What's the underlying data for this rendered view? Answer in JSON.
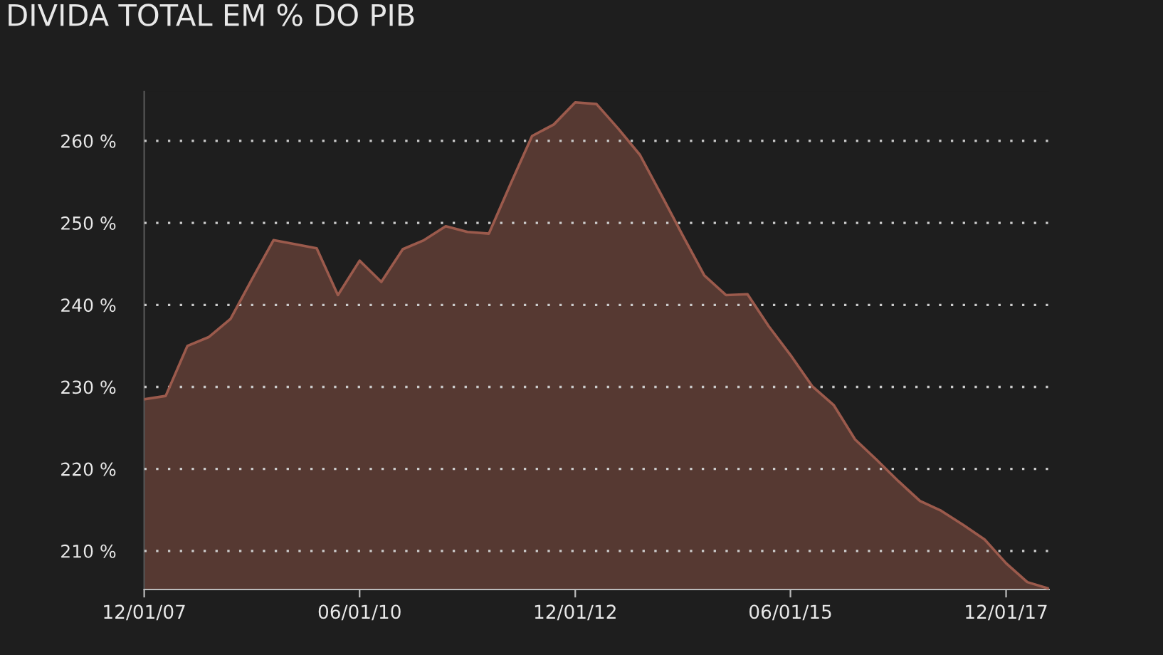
{
  "chart_data": {
    "type": "area",
    "title": "DIVIDA TOTAL EM % DO PIB",
    "x": [
      "2007-12-01",
      "2008-03-01",
      "2008-06-01",
      "2008-09-01",
      "2008-12-01",
      "2009-03-01",
      "2009-06-01",
      "2009-09-01",
      "2009-12-01",
      "2010-03-01",
      "2010-06-01",
      "2010-09-01",
      "2010-12-01",
      "2011-03-01",
      "2011-06-01",
      "2011-09-01",
      "2011-12-01",
      "2012-03-01",
      "2012-06-01",
      "2012-09-01",
      "2012-12-01",
      "2013-03-01",
      "2013-06-01",
      "2013-09-01",
      "2013-12-01",
      "2014-03-01",
      "2014-06-01",
      "2014-09-01",
      "2014-12-01",
      "2015-03-01",
      "2015-06-01",
      "2015-09-01",
      "2015-12-01",
      "2016-03-01",
      "2016-06-01",
      "2016-09-01",
      "2016-12-01",
      "2017-03-01",
      "2017-06-01",
      "2017-09-01",
      "2017-12-01",
      "2018-03-01",
      "2018-06-01"
    ],
    "series": [
      {
        "color": "#9b5a4c",
        "values": [
          228.5,
          228.9,
          235.0,
          236.1,
          238.3,
          243.1,
          247.9,
          247.4,
          246.9,
          241.2,
          245.4,
          242.8,
          246.8,
          247.9,
          249.6,
          248.9,
          248.7,
          254.7,
          260.6,
          262.0,
          264.7,
          264.5,
          261.5,
          258.3,
          253.4,
          248.5,
          243.6,
          241.2,
          241.3,
          237.4,
          233.9,
          230.1,
          227.8,
          223.6,
          221.1,
          218.5,
          216.1,
          214.9,
          213.2,
          211.4,
          208.5,
          206.2,
          205.4
        ]
      }
    ],
    "xlim": [
      "2007-12-01",
      "2018-06-01"
    ],
    "xticks": [
      {
        "value": "2007-12-01",
        "label": "12/01/07"
      },
      {
        "value": "2010-06-01",
        "label": "06/01/10"
      },
      {
        "value": "2012-12-01",
        "label": "12/01/12"
      },
      {
        "value": "2015-06-01",
        "label": "06/01/15"
      },
      {
        "value": "2017-12-01",
        "label": "12/01/17"
      }
    ],
    "ylim": [
      205.3,
      266
    ],
    "yticks": [
      {
        "value": 210,
        "label": "210 %"
      },
      {
        "value": 220,
        "label": "220 %"
      },
      {
        "value": 230,
        "label": "230 %"
      },
      {
        "value": 240,
        "label": "240 %"
      },
      {
        "value": 250,
        "label": "250 %"
      },
      {
        "value": 260,
        "label": "260 %"
      }
    ],
    "grid": "y",
    "line_style": "solid",
    "marker": "none",
    "legend": false
  }
}
